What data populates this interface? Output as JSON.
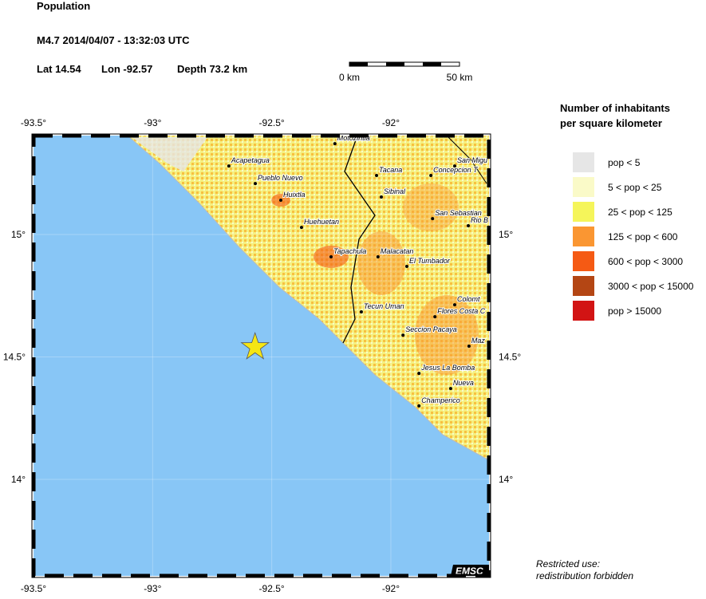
{
  "header": {
    "title": "Population",
    "event": "M4.7  2014/04/07 - 13:32:03 UTC",
    "lat": "Lat 14.54",
    "lon": "Lon -92.57",
    "depth": "Depth  73.2 km"
  },
  "scale_bar": {
    "start": "0 km",
    "end": "50 km"
  },
  "map": {
    "lonlim": [
      -93.5,
      -91.588
    ],
    "latlim": [
      13.606,
      15.404
    ],
    "lonticks": [
      {
        "value": -93.5,
        "label": "-93.5°"
      },
      {
        "value": -93,
        "label": "-93°"
      },
      {
        "value": -92.5,
        "label": "-92.5°"
      },
      {
        "value": -92,
        "label": "-92°"
      }
    ],
    "latticks": [
      {
        "value": 15,
        "label": "15°"
      },
      {
        "value": 14.5,
        "label": "14.5°"
      },
      {
        "value": 14,
        "label": "14°"
      }
    ],
    "epicenter": {
      "lon": -92.57,
      "lat": 14.54,
      "color": "#f5e614"
    },
    "cities": [
      {
        "name": "Motozintla",
        "lon": -92.235,
        "lat": 15.371
      },
      {
        "name": "Acapetagua",
        "lon": -92.68,
        "lat": 15.28
      },
      {
        "name": "Pueblo Nuevo",
        "lon": -92.569,
        "lat": 15.208
      },
      {
        "name": "Huixtla",
        "lon": -92.462,
        "lat": 15.14
      },
      {
        "name": "Huehuetan",
        "lon": -92.375,
        "lat": 15.029
      },
      {
        "name": "Tapachula",
        "lon": -92.251,
        "lat": 14.909
      },
      {
        "name": "Tacana",
        "lon": -92.06,
        "lat": 15.241
      },
      {
        "name": "Sibinal",
        "lon": -92.04,
        "lat": 15.153
      },
      {
        "name": "Concepcion T",
        "lon": -91.832,
        "lat": 15.241
      },
      {
        "name": "San Migu",
        "lon": -91.732,
        "lat": 15.28
      },
      {
        "name": "San Sebastian",
        "lon": -91.825,
        "lat": 15.065
      },
      {
        "name": "Rio B",
        "lon": -91.675,
        "lat": 15.036
      },
      {
        "name": "Malacatan",
        "lon": -92.054,
        "lat": 14.909
      },
      {
        "name": "El Tumbador",
        "lon": -91.933,
        "lat": 14.87
      },
      {
        "name": "Colomt",
        "lon": -91.732,
        "lat": 14.713
      },
      {
        "name": "Tecun Uman",
        "lon": -92.124,
        "lat": 14.684
      },
      {
        "name": "Flores Costa C",
        "lon": -91.815,
        "lat": 14.664
      },
      {
        "name": "Seccion Pacaya",
        "lon": -91.949,
        "lat": 14.589
      },
      {
        "name": "Maz",
        "lon": -91.672,
        "lat": 14.544
      },
      {
        "name": "Jesus La Bomba",
        "lon": -91.882,
        "lat": 14.433
      },
      {
        "name": "Nueva",
        "lon": -91.749,
        "lat": 14.371
      },
      {
        "name": "Champerico",
        "lon": -91.882,
        "lat": 14.3
      }
    ],
    "brand": "EMSC"
  },
  "legend": {
    "title_line1": "Number of inhabitants",
    "title_line2": "per square kilometer",
    "items": [
      {
        "label": "pop < 5",
        "color": "#e6e6e6"
      },
      {
        "label": "5 < pop < 25",
        "color": "#fafac8"
      },
      {
        "label": "25 < pop < 125",
        "color": "#f5f55a"
      },
      {
        "label": "125 < pop < 600",
        "color": "#fa9632"
      },
      {
        "label": "600 < pop < 3000",
        "color": "#f55a14"
      },
      {
        "label": "3000 < pop < 15000",
        "color": "#b44614"
      },
      {
        "label": "pop > 15000",
        "color": "#d21414"
      }
    ]
  },
  "footer": {
    "line1": "Restricted use:",
    "line2": "redistribution forbidden"
  }
}
